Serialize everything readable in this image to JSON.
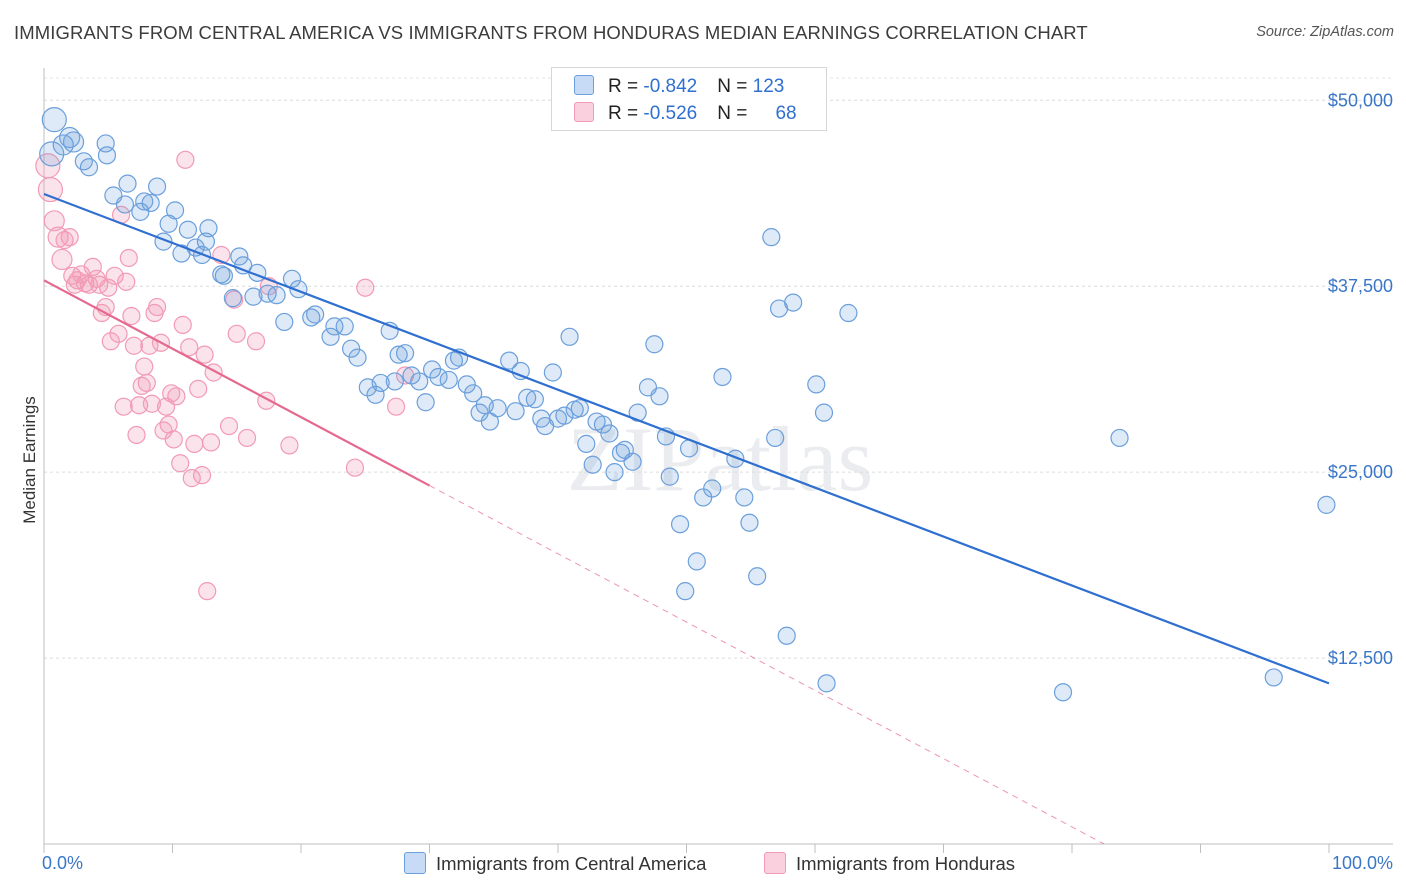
{
  "title": "IMMIGRANTS FROM CENTRAL AMERICA VS IMMIGRANTS FROM HONDURAS MEDIAN EARNINGS CORRELATION CHART",
  "source": "Source: ZipAtlas.com",
  "watermark": "ZIPatlas",
  "legend": {
    "rows": [
      {
        "r_label": "R = ",
        "r_value": "-0.842",
        "n_label": "N = ",
        "n_value": "123"
      },
      {
        "r_label": "R = ",
        "r_value": "-0.526",
        "n_label": "N = ",
        "n_value": "68"
      }
    ]
  },
  "bottom_legend": [
    "Immigrants from Central America",
    "Immigrants from Honduras"
  ],
  "colors": {
    "blue": "#6b9fdc",
    "blue_line": "#2f6fd0",
    "pink": "#f29ab6",
    "pink_line": "#e5698f",
    "axis_text": "#3a76c8"
  },
  "chart_data": {
    "type": "scatter",
    "title": "IMMIGRANTS FROM CENTRAL AMERICA VS IMMIGRANTS FROM HONDURAS MEDIAN EARNINGS CORRELATION CHART",
    "xlabel": "",
    "ylabel": "Median Earnings",
    "xlim": [
      0,
      100
    ],
    "ylim": [
      0,
      51500
    ],
    "x_tick_labels": [
      "0.0%",
      "100.0%"
    ],
    "y_ticks": [
      12500,
      25000,
      37500,
      50000
    ],
    "y_tick_labels": [
      "$12,500",
      "$25,000",
      "$37,500",
      "$50,000"
    ],
    "grid": true,
    "series": [
      {
        "name": "Immigrants from Central America",
        "R": -0.842,
        "N": 123,
        "trend": {
          "x0": 0,
          "y0": 43700,
          "x1": 100,
          "y1": 10800
        },
        "points": [
          [
            0.6,
            46400
          ],
          [
            0.8,
            48700
          ],
          [
            1.5,
            47000
          ],
          [
            2,
            47500
          ],
          [
            2.3,
            47200
          ],
          [
            3.1,
            45900
          ],
          [
            3.5,
            45500
          ],
          [
            4.8,
            47100
          ],
          [
            4.9,
            46300
          ],
          [
            5.4,
            43600
          ],
          [
            6.3,
            43000
          ],
          [
            6.5,
            44400
          ],
          [
            7.5,
            42500
          ],
          [
            7.8,
            43200
          ],
          [
            8.3,
            43100
          ],
          [
            8.8,
            44200
          ],
          [
            9.3,
            40500
          ],
          [
            9.7,
            41700
          ],
          [
            10.2,
            42600
          ],
          [
            10.7,
            39700
          ],
          [
            11.2,
            41300
          ],
          [
            11.8,
            40100
          ],
          [
            12.3,
            39600
          ],
          [
            12.6,
            40500
          ],
          [
            12.8,
            41400
          ],
          [
            13.8,
            38300
          ],
          [
            14.0,
            38200
          ],
          [
            14.7,
            36700
          ],
          [
            15.2,
            39500
          ],
          [
            15.5,
            38900
          ],
          [
            16.3,
            36800
          ],
          [
            16.6,
            38400
          ],
          [
            17.4,
            37000
          ],
          [
            18.1,
            36900
          ],
          [
            18.7,
            35100
          ],
          [
            19.3,
            38000
          ],
          [
            19.8,
            37300
          ],
          [
            20.8,
            35400
          ],
          [
            21.1,
            35600
          ],
          [
            22.3,
            34100
          ],
          [
            22.6,
            34800
          ],
          [
            23.4,
            34800
          ],
          [
            23.9,
            33300
          ],
          [
            24.4,
            32700
          ],
          [
            25.2,
            30700
          ],
          [
            25.8,
            30200
          ],
          [
            26.2,
            31000
          ],
          [
            26.9,
            34500
          ],
          [
            27.3,
            31100
          ],
          [
            27.6,
            32900
          ],
          [
            28.1,
            33000
          ],
          [
            28.6,
            31500
          ],
          [
            29.2,
            31100
          ],
          [
            29.7,
            29700
          ],
          [
            30.2,
            31900
          ],
          [
            30.7,
            31400
          ],
          [
            31.5,
            31200
          ],
          [
            31.9,
            32500
          ],
          [
            32.3,
            32700
          ],
          [
            32.9,
            30900
          ],
          [
            33.4,
            30300
          ],
          [
            33.9,
            29000
          ],
          [
            34.3,
            29500
          ],
          [
            34.7,
            28400
          ],
          [
            35.3,
            29300
          ],
          [
            36.2,
            32500
          ],
          [
            36.7,
            29100
          ],
          [
            37.1,
            31800
          ],
          [
            37.6,
            30000
          ],
          [
            38.2,
            29900
          ],
          [
            38.7,
            28600
          ],
          [
            39.0,
            28100
          ],
          [
            39.6,
            31700
          ],
          [
            40.0,
            28600
          ],
          [
            40.5,
            28800
          ],
          [
            40.9,
            34100
          ],
          [
            41.3,
            29200
          ],
          [
            41.7,
            29300
          ],
          [
            42.2,
            26900
          ],
          [
            42.7,
            25500
          ],
          [
            43.0,
            28400
          ],
          [
            43.5,
            28200
          ],
          [
            44.0,
            27600
          ],
          [
            44.4,
            25000
          ],
          [
            44.9,
            26300
          ],
          [
            45.2,
            26500
          ],
          [
            45.8,
            25700
          ],
          [
            46.2,
            29000
          ],
          [
            47.0,
            30700
          ],
          [
            47.5,
            33600
          ],
          [
            47.9,
            30100
          ],
          [
            48.4,
            27400
          ],
          [
            48.7,
            24700
          ],
          [
            49.5,
            21500
          ],
          [
            49.9,
            17000
          ],
          [
            50.2,
            26600
          ],
          [
            50.8,
            19000
          ],
          [
            51.3,
            23300
          ],
          [
            52.0,
            23900
          ],
          [
            52.8,
            31400
          ],
          [
            53.8,
            25900
          ],
          [
            54.5,
            23300
          ],
          [
            54.9,
            21600
          ],
          [
            55.5,
            18000
          ],
          [
            56.6,
            40800
          ],
          [
            56.9,
            27300
          ],
          [
            57.2,
            36000
          ],
          [
            57.8,
            14000
          ],
          [
            58.3,
            36400
          ],
          [
            60.1,
            30900
          ],
          [
            60.7,
            29000
          ],
          [
            60.9,
            10800
          ],
          [
            62.6,
            35700
          ],
          [
            79.3,
            10200
          ],
          [
            83.7,
            27300
          ],
          [
            95.7,
            11200
          ],
          [
            99.8,
            22800
          ]
        ]
      },
      {
        "name": "Immigrants from Honduras",
        "R": -0.526,
        "N": 68,
        "trend": {
          "x0": 0,
          "y0": 37900,
          "x1": 30,
          "y1": 24100
        },
        "trend_extended": {
          "x0": 30,
          "y0": 24100,
          "x1": 82.5,
          "y1": 0
        },
        "points": [
          [
            0.3,
            45600
          ],
          [
            0.5,
            44000
          ],
          [
            0.8,
            41900
          ],
          [
            1.1,
            40800
          ],
          [
            1.4,
            39300
          ],
          [
            1.6,
            40600
          ],
          [
            2.0,
            40800
          ],
          [
            2.2,
            38200
          ],
          [
            2.4,
            37600
          ],
          [
            2.6,
            37900
          ],
          [
            2.9,
            38300
          ],
          [
            3.2,
            37700
          ],
          [
            3.5,
            37600
          ],
          [
            3.8,
            38800
          ],
          [
            4.1,
            38000
          ],
          [
            4.3,
            37600
          ],
          [
            4.5,
            35700
          ],
          [
            4.8,
            36100
          ],
          [
            5.0,
            37400
          ],
          [
            5.2,
            33800
          ],
          [
            5.5,
            38200
          ],
          [
            5.8,
            34300
          ],
          [
            6.0,
            42300
          ],
          [
            6.2,
            29400
          ],
          [
            6.4,
            37800
          ],
          [
            6.6,
            39400
          ],
          [
            6.8,
            35500
          ],
          [
            7.0,
            33500
          ],
          [
            7.2,
            27500
          ],
          [
            7.4,
            29500
          ],
          [
            7.6,
            30800
          ],
          [
            7.8,
            32100
          ],
          [
            8.0,
            31000
          ],
          [
            8.2,
            33500
          ],
          [
            8.4,
            29600
          ],
          [
            8.6,
            35700
          ],
          [
            8.8,
            36100
          ],
          [
            9.1,
            33700
          ],
          [
            9.3,
            27800
          ],
          [
            9.5,
            29400
          ],
          [
            9.7,
            28200
          ],
          [
            9.9,
            30300
          ],
          [
            10.1,
            27200
          ],
          [
            10.3,
            30100
          ],
          [
            10.6,
            25600
          ],
          [
            10.8,
            34900
          ],
          [
            11.0,
            46000
          ],
          [
            11.3,
            33400
          ],
          [
            11.5,
            24600
          ],
          [
            11.7,
            26900
          ],
          [
            12.0,
            30600
          ],
          [
            12.3,
            24800
          ],
          [
            12.5,
            32900
          ],
          [
            12.7,
            17000
          ],
          [
            13.0,
            27000
          ],
          [
            13.2,
            31700
          ],
          [
            13.8,
            39600
          ],
          [
            14.4,
            28100
          ],
          [
            14.8,
            36600
          ],
          [
            15.0,
            34300
          ],
          [
            15.8,
            27300
          ],
          [
            16.5,
            33800
          ],
          [
            17.3,
            29800
          ],
          [
            17.5,
            37500
          ],
          [
            19.1,
            26800
          ],
          [
            24.2,
            25300
          ],
          [
            25.0,
            37400
          ],
          [
            27.4,
            29400
          ],
          [
            28.1,
            31500
          ]
        ]
      }
    ]
  }
}
